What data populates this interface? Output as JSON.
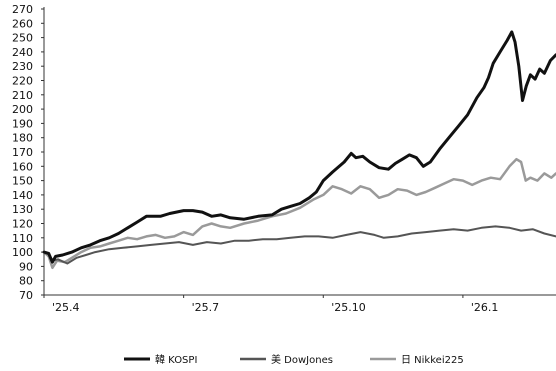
{
  "chart_data": {
    "type": "line",
    "title": "",
    "xlabel": "",
    "ylabel": "",
    "ylim": [
      70,
      270
    ],
    "y_ticks": [
      70,
      80,
      90,
      100,
      110,
      120,
      130,
      140,
      150,
      160,
      170,
      180,
      190,
      200,
      210,
      220,
      230,
      240,
      250,
      260,
      270
    ],
    "x_ticks": [
      {
        "x": 0,
        "label": "'25.4"
      },
      {
        "x": 3,
        "label": "'25.7"
      },
      {
        "x": 6,
        "label": "'25.10"
      },
      {
        "x": 9,
        "label": "'26.1"
      }
    ],
    "xlim": [
      0,
      11
    ],
    "grid": false,
    "legend_position": "bottom",
    "colors": {
      "kospi": "#111111",
      "dow": "#555555",
      "nikkei": "#9a9a9a",
      "axis": "#333333"
    },
    "series": [
      {
        "key": "kospi",
        "name": "韓 KOSPI",
        "points": [
          [
            0.0,
            100
          ],
          [
            0.1,
            99
          ],
          [
            0.18,
            93
          ],
          [
            0.25,
            97
          ],
          [
            0.4,
            98
          ],
          [
            0.6,
            100
          ],
          [
            0.8,
            103
          ],
          [
            1.0,
            105
          ],
          [
            1.2,
            108
          ],
          [
            1.4,
            110
          ],
          [
            1.6,
            113
          ],
          [
            1.8,
            117
          ],
          [
            2.0,
            121
          ],
          [
            2.2,
            125
          ],
          [
            2.5,
            125
          ],
          [
            2.7,
            127
          ],
          [
            3.0,
            129
          ],
          [
            3.2,
            129
          ],
          [
            3.4,
            128
          ],
          [
            3.6,
            125
          ],
          [
            3.8,
            126
          ],
          [
            4.0,
            124
          ],
          [
            4.3,
            123
          ],
          [
            4.6,
            125
          ],
          [
            4.9,
            126
          ],
          [
            5.1,
            130
          ],
          [
            5.3,
            132
          ],
          [
            5.5,
            134
          ],
          [
            5.7,
            138
          ],
          [
            5.85,
            142
          ],
          [
            6.0,
            150
          ],
          [
            6.2,
            156
          ],
          [
            6.45,
            163
          ],
          [
            6.6,
            169
          ],
          [
            6.7,
            166
          ],
          [
            6.85,
            167
          ],
          [
            7.0,
            163
          ],
          [
            7.2,
            159
          ],
          [
            7.4,
            158
          ],
          [
            7.55,
            162
          ],
          [
            7.7,
            165
          ],
          [
            7.85,
            168
          ],
          [
            8.0,
            166
          ],
          [
            8.15,
            160
          ],
          [
            8.3,
            163
          ],
          [
            8.5,
            172
          ],
          [
            8.7,
            180
          ],
          [
            8.9,
            188
          ],
          [
            9.1,
            196
          ],
          [
            9.3,
            208
          ],
          [
            9.45,
            215
          ],
          [
            9.55,
            222
          ],
          [
            9.65,
            232
          ],
          [
            9.8,
            240
          ],
          [
            9.95,
            248
          ],
          [
            10.05,
            254
          ],
          [
            10.12,
            247
          ],
          [
            10.2,
            230
          ],
          [
            10.28,
            206
          ],
          [
            10.36,
            216
          ],
          [
            10.45,
            224
          ],
          [
            10.55,
            221
          ],
          [
            10.65,
            228
          ],
          [
            10.75,
            225
          ],
          [
            10.88,
            234
          ],
          [
            11.0,
            238
          ]
        ]
      },
      {
        "key": "dow",
        "name": "美 DowJones",
        "points": [
          [
            0.0,
            100
          ],
          [
            0.1,
            99
          ],
          [
            0.18,
            94
          ],
          [
            0.3,
            95
          ],
          [
            0.5,
            92
          ],
          [
            0.7,
            96
          ],
          [
            0.9,
            98
          ],
          [
            1.1,
            100
          ],
          [
            1.4,
            102
          ],
          [
            1.7,
            103
          ],
          [
            2.0,
            104
          ],
          [
            2.3,
            105
          ],
          [
            2.6,
            106
          ],
          [
            2.9,
            107
          ],
          [
            3.2,
            105
          ],
          [
            3.5,
            107
          ],
          [
            3.8,
            106
          ],
          [
            4.1,
            108
          ],
          [
            4.4,
            108
          ],
          [
            4.7,
            109
          ],
          [
            5.0,
            109
          ],
          [
            5.3,
            110
          ],
          [
            5.6,
            111
          ],
          [
            5.9,
            111
          ],
          [
            6.2,
            110
          ],
          [
            6.5,
            112
          ],
          [
            6.8,
            114
          ],
          [
            7.1,
            112
          ],
          [
            7.3,
            110
          ],
          [
            7.6,
            111
          ],
          [
            7.9,
            113
          ],
          [
            8.2,
            114
          ],
          [
            8.5,
            115
          ],
          [
            8.8,
            116
          ],
          [
            9.1,
            115
          ],
          [
            9.4,
            117
          ],
          [
            9.7,
            118
          ],
          [
            10.0,
            117
          ],
          [
            10.25,
            115
          ],
          [
            10.5,
            116
          ],
          [
            10.75,
            113
          ],
          [
            11.0,
            111
          ]
        ]
      },
      {
        "key": "nikkei",
        "name": "日 Nikkei225",
        "points": [
          [
            0.0,
            100
          ],
          [
            0.1,
            97
          ],
          [
            0.18,
            89
          ],
          [
            0.28,
            94
          ],
          [
            0.45,
            93
          ],
          [
            0.6,
            96
          ],
          [
            0.8,
            100
          ],
          [
            1.0,
            103
          ],
          [
            1.2,
            104
          ],
          [
            1.4,
            106
          ],
          [
            1.6,
            108
          ],
          [
            1.8,
            110
          ],
          [
            2.0,
            109
          ],
          [
            2.2,
            111
          ],
          [
            2.4,
            112
          ],
          [
            2.6,
            110
          ],
          [
            2.8,
            111
          ],
          [
            3.0,
            114
          ],
          [
            3.2,
            112
          ],
          [
            3.4,
            118
          ],
          [
            3.6,
            120
          ],
          [
            3.8,
            118
          ],
          [
            4.0,
            117
          ],
          [
            4.3,
            120
          ],
          [
            4.6,
            122
          ],
          [
            4.9,
            125
          ],
          [
            5.2,
            127
          ],
          [
            5.5,
            131
          ],
          [
            5.8,
            137
          ],
          [
            6.0,
            140
          ],
          [
            6.2,
            146
          ],
          [
            6.4,
            144
          ],
          [
            6.6,
            141
          ],
          [
            6.8,
            146
          ],
          [
            7.0,
            144
          ],
          [
            7.2,
            138
          ],
          [
            7.4,
            140
          ],
          [
            7.6,
            144
          ],
          [
            7.8,
            143
          ],
          [
            8.0,
            140
          ],
          [
            8.2,
            142
          ],
          [
            8.4,
            145
          ],
          [
            8.6,
            148
          ],
          [
            8.8,
            151
          ],
          [
            9.0,
            150
          ],
          [
            9.2,
            147
          ],
          [
            9.4,
            150
          ],
          [
            9.6,
            152
          ],
          [
            9.8,
            151
          ],
          [
            10.0,
            160
          ],
          [
            10.15,
            165
          ],
          [
            10.25,
            163
          ],
          [
            10.35,
            150
          ],
          [
            10.45,
            152
          ],
          [
            10.6,
            150
          ],
          [
            10.75,
            155
          ],
          [
            10.9,
            152
          ],
          [
            11.0,
            155
          ]
        ]
      }
    ]
  }
}
